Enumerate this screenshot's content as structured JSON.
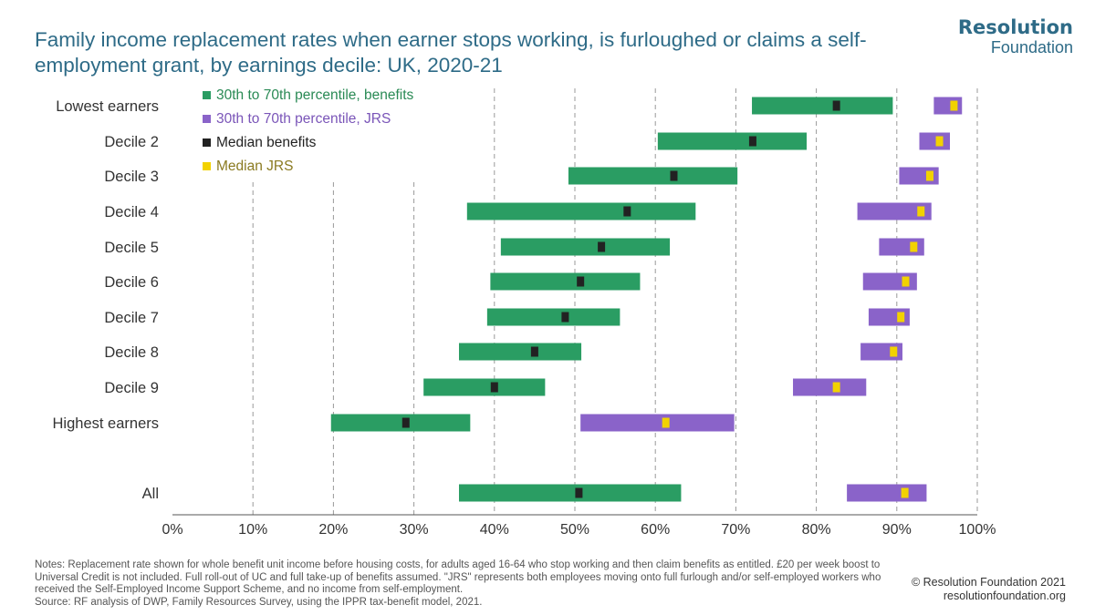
{
  "title": "Family income replacement rates when earner stops working, is furloughed or claims a self-employment grant, by earnings decile: UK, 2020-21",
  "logo": {
    "line1": "Resolution",
    "line2": "Foundation"
  },
  "notes": {
    "text": "Notes: Replacement rate shown for whole benefit unit income before housing costs, for adults aged 16-64 who stop working and then claim benefits as entitled. £20 per week boost to Universal Credit is not included. Full roll-out of UC and full take-up of benefits assumed.  \"JRS\" represents both employees moving onto full furlough and/or self-employed workers who received the Self-Employed Income Support Scheme, and no income from self-employment.",
    "source": "Source: RF analysis of DWP, Family Resources Survey, using the IPPR tax-benefit model, 2021."
  },
  "credit": {
    "line1": "© Resolution Foundation 2021",
    "line2": "resolutionfoundation.org"
  },
  "colors": {
    "benefits_range": "#2a9d63",
    "jrs_range": "#8a63c9",
    "median_benefits": "#222222",
    "median_jrs": "#f2d200",
    "grid": "#999999",
    "title": "#2e6b87"
  },
  "chart_data": {
    "type": "range-bar",
    "categories": [
      "Lowest earners",
      "Decile 2",
      "Decile 3",
      "Decile 4",
      "Decile 5",
      "Decile 6",
      "Decile 7",
      "Decile 8",
      "Decile 9",
      "Highest earners",
      "All"
    ],
    "x_ticks": [
      "0%",
      "10%",
      "20%",
      "30%",
      "40%",
      "50%",
      "60%",
      "70%",
      "80%",
      "90%",
      "100%"
    ],
    "xlim": [
      0,
      100
    ],
    "grid": "vertical dashed",
    "legend_position": "top-left",
    "series": [
      {
        "name": "30th to 70th percentile, benefits",
        "kind": "range",
        "low": [
          72,
          60.3,
          49.2,
          36.6,
          40.8,
          39.5,
          39.1,
          35.6,
          31.2,
          19.7,
          35.6
        ],
        "high": [
          89.5,
          78.8,
          70.2,
          65,
          61.8,
          58.1,
          55.6,
          50.8,
          46.3,
          37,
          63.2
        ]
      },
      {
        "name": "30th to 70th percentile, JRS",
        "kind": "range",
        "low": [
          94.6,
          92.8,
          90.3,
          85.1,
          87.8,
          85.8,
          86.5,
          85.5,
          77.1,
          50.7,
          83.8
        ],
        "high": [
          98.1,
          96.6,
          95.2,
          94.3,
          93.4,
          92.5,
          91.6,
          90.7,
          86.2,
          69.8,
          93.7
        ]
      },
      {
        "name": "Median benefits",
        "kind": "median",
        "values": [
          82.5,
          72.1,
          62.3,
          56.5,
          53.3,
          50.7,
          48.8,
          45,
          40,
          29,
          50.5
        ]
      },
      {
        "name": "Median JRS",
        "kind": "median",
        "values": [
          97.1,
          95.3,
          94.1,
          93,
          92.1,
          91.1,
          90.5,
          89.6,
          82.5,
          61.3,
          91
        ]
      }
    ]
  }
}
